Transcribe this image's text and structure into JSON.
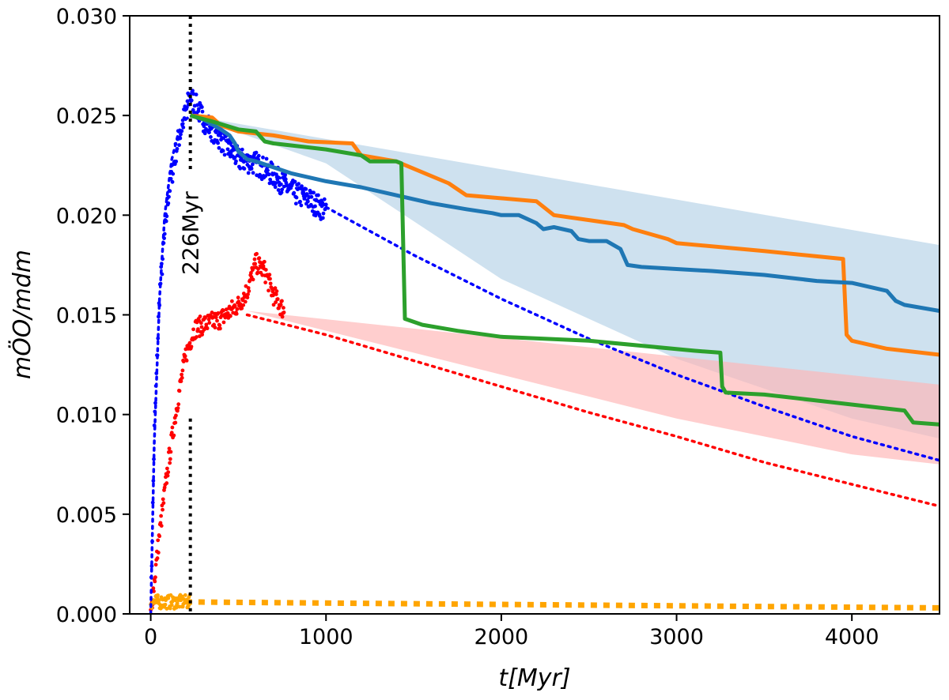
{
  "chart_data": {
    "type": "line",
    "xlabel": "t[Myr]",
    "ylabel": "mÖO/mdm",
    "xlim": [
      -120,
      4500
    ],
    "ylim": [
      0,
      0.03
    ],
    "x_ticks": [
      0,
      1000,
      2000,
      3000,
      4000
    ],
    "x_tick_labels": [
      "0",
      "1000",
      "2000",
      "3000",
      "4000"
    ],
    "y_ticks": [
      0,
      0.005,
      0.01,
      0.015,
      0.02,
      0.025,
      0.03
    ],
    "y_tick_labels": [
      "0.000",
      "0.005",
      "0.010",
      "0.015",
      "0.020",
      "0.025",
      "0.030"
    ],
    "annotation": {
      "text": "226Myr",
      "x": 226
    },
    "vline_x": 226,
    "colors": {
      "blue_points": "#0000ff",
      "red_points": "#ff0000",
      "orange_points": "#ffa500",
      "steelblue": "#1f77b4",
      "orange": "#ff7f0e",
      "green": "#2ca02c",
      "blue_band": "#a6c8e2",
      "red_band": "#ffb3b3"
    },
    "bands": [
      {
        "name": "blue-band",
        "x": [
          226,
          4500
        ],
        "upper": [
          0.025,
          0.0185
        ],
        "lower_decay": {
          "x": [
            226,
            1000,
            2000,
            3000,
            4000,
            4500
          ],
          "y": [
            0.025,
            0.0226,
            0.0168,
            0.0128,
            0.0098,
            0.0088
          ]
        }
      },
      {
        "name": "red-band",
        "x": [
          550,
          4500
        ],
        "upper": [
          0.0152,
          0.0115
        ],
        "lower": {
          "x": [
            550,
            1000,
            2000,
            3000,
            4000,
            4500
          ],
          "y": [
            0.0152,
            0.0142,
            0.012,
            0.0098,
            0.008,
            0.0075
          ]
        }
      }
    ],
    "series": [
      {
        "name": "steelblue-line",
        "x": [
          226,
          300,
          400,
          450,
          480,
          500,
          550,
          600,
          700,
          800,
          1000,
          1200,
          1400,
          1600,
          1800,
          1950,
          2000,
          2100,
          2200,
          2240,
          2300,
          2400,
          2440,
          2500,
          2600,
          2680,
          2720,
          2800,
          3000,
          3200,
          3500,
          3800,
          4000,
          4200,
          4250,
          4300,
          4500
        ],
        "y": [
          0.025,
          0.0248,
          0.0243,
          0.024,
          0.0236,
          0.0232,
          0.0228,
          0.0227,
          0.0224,
          0.0221,
          0.0217,
          0.0214,
          0.021,
          0.0206,
          0.0203,
          0.0201,
          0.02,
          0.02,
          0.0196,
          0.0193,
          0.0194,
          0.0192,
          0.0188,
          0.0187,
          0.0187,
          0.0183,
          0.0175,
          0.0174,
          0.0173,
          0.0172,
          0.017,
          0.0167,
          0.0166,
          0.0162,
          0.0157,
          0.0155,
          0.0152
        ]
      },
      {
        "name": "orange-line",
        "x": [
          226,
          350,
          400,
          500,
          700,
          900,
          1150,
          1200,
          1400,
          1700,
          1800,
          2200,
          2300,
          2700,
          2750,
          2950,
          3000,
          3500,
          3950,
          3970,
          4000,
          4200,
          4500
        ],
        "y": [
          0.025,
          0.0249,
          0.0245,
          0.0242,
          0.024,
          0.0237,
          0.0236,
          0.023,
          0.0227,
          0.0216,
          0.021,
          0.0207,
          0.02,
          0.0195,
          0.0193,
          0.0188,
          0.0186,
          0.0182,
          0.0178,
          0.014,
          0.0137,
          0.0133,
          0.013
        ]
      },
      {
        "name": "green-line",
        "x": [
          226,
          350,
          500,
          600,
          650,
          700,
          800,
          1000,
          1200,
          1250,
          1300,
          1400,
          1430,
          1450,
          1550,
          1750,
          2000,
          2500,
          3100,
          3250,
          3260,
          3280,
          3500,
          3900,
          4200,
          4300,
          4350,
          4500
        ],
        "y": [
          0.025,
          0.0247,
          0.0243,
          0.0242,
          0.0237,
          0.0236,
          0.0235,
          0.0233,
          0.023,
          0.0227,
          0.0227,
          0.0227,
          0.0226,
          0.0148,
          0.0145,
          0.0142,
          0.0139,
          0.0137,
          0.0132,
          0.0131,
          0.0114,
          0.0111,
          0.011,
          0.0106,
          0.0103,
          0.0102,
          0.0096,
          0.0095
        ]
      },
      {
        "name": "blue-dotted-fit",
        "x": [
          0,
          20,
          50,
          80,
          120,
          160,
          200,
          226,
          300,
          500,
          1000,
          1500,
          2000,
          2500,
          3000,
          3500,
          4000,
          4500
        ],
        "y": [
          0.0,
          0.0085,
          0.0158,
          0.02,
          0.0228,
          0.0242,
          0.0248,
          0.025,
          0.0247,
          0.0232,
          0.0204,
          0.018,
          0.0158,
          0.0138,
          0.012,
          0.0104,
          0.0089,
          0.0077
        ]
      },
      {
        "name": "red-dotted-fit",
        "x": [
          550,
          1000,
          1500,
          2000,
          2500,
          3000,
          3500,
          4000,
          4500
        ],
        "y": [
          0.015,
          0.014,
          0.0127,
          0.0114,
          0.0101,
          0.0089,
          0.0076,
          0.0065,
          0.0054
        ]
      },
      {
        "name": "orange-dotted-fit",
        "x": [
          200,
          4500
        ],
        "y": [
          0.0006,
          0.0003
        ]
      },
      {
        "name": "blue-scatter",
        "x_range": [
          0,
          1000
        ],
        "peak_x": 226,
        "peak_y": 0.0265,
        "end_y": 0.0202
      },
      {
        "name": "red-scatter",
        "x_range": [
          0,
          760
        ],
        "peak_x": 600,
        "peak_y": 0.0184,
        "end_y": 0.015
      },
      {
        "name": "orange-scatter",
        "x_range": [
          0,
          226
        ],
        "level": 0.0006
      }
    ]
  }
}
